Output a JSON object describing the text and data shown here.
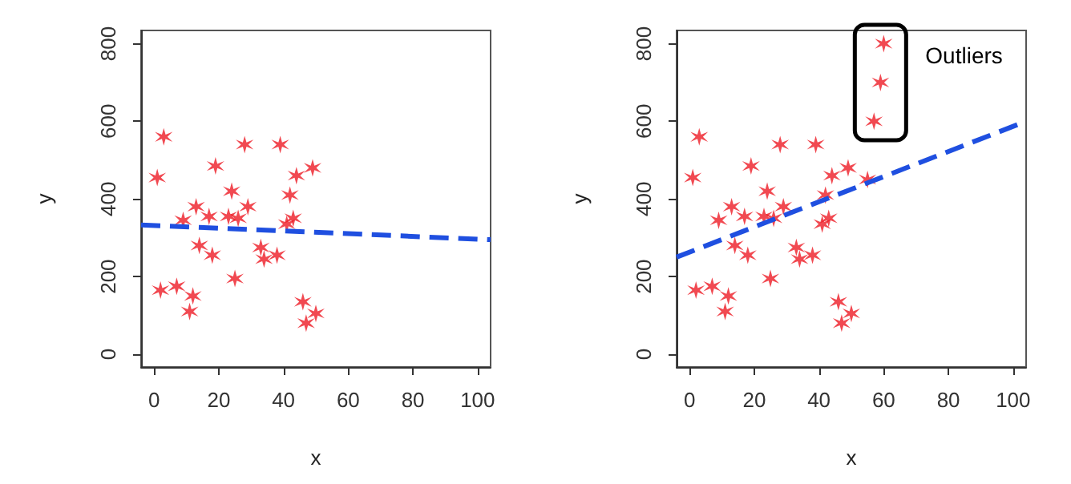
{
  "chart_data": [
    {
      "type": "scatter",
      "xlabel": "x",
      "ylabel": "y",
      "xlim": [
        -4,
        104
      ],
      "ylim": [
        -33,
        834
      ],
      "xticks": [
        0,
        20,
        40,
        60,
        80,
        100
      ],
      "yticks": [
        0,
        200,
        400,
        600,
        800
      ],
      "series": [
        {
          "color": "#ee1c25",
          "marker": "cross",
          "x": [
            1,
            3,
            2,
            7,
            9,
            11,
            12,
            13,
            14,
            17,
            18,
            19,
            23,
            24,
            25,
            26,
            28,
            29,
            33,
            34,
            38,
            39,
            41,
            42,
            43,
            44,
            46,
            47,
            49,
            50
          ],
          "values": [
            455,
            560,
            165,
            175,
            345,
            110,
            150,
            380,
            280,
            355,
            255,
            485,
            355,
            420,
            195,
            350,
            540,
            380,
            275,
            245,
            255,
            540,
            335,
            410,
            350,
            460,
            135,
            80,
            480,
            105
          ]
        },
        {
          "type": "line",
          "color": "#1f4fe0",
          "line_style": "dashed",
          "x": [
            -4,
            104
          ],
          "values": [
            333,
            295
          ]
        }
      ]
    },
    {
      "type": "scatter",
      "xlabel": "x",
      "ylabel": "y",
      "xlim": [
        -4,
        104
      ],
      "ylim": [
        -33,
        834
      ],
      "xticks": [
        0,
        20,
        40,
        60,
        80,
        100
      ],
      "yticks": [
        0,
        200,
        400,
        600,
        800
      ],
      "annotations": [
        {
          "text": "Outliers",
          "x": 59,
          "y": 700
        }
      ],
      "series": [
        {
          "color": "#ee1c25",
          "marker": "cross",
          "x": [
            1,
            3,
            2,
            7,
            9,
            11,
            12,
            13,
            14,
            17,
            18,
            19,
            23,
            24,
            25,
            26,
            28,
            29,
            33,
            34,
            38,
            39,
            41,
            42,
            43,
            44,
            46,
            47,
            49,
            50,
            55,
            57,
            59,
            60
          ],
          "values": [
            455,
            560,
            165,
            175,
            345,
            110,
            150,
            380,
            280,
            355,
            255,
            485,
            355,
            420,
            195,
            350,
            540,
            380,
            275,
            245,
            255,
            540,
            335,
            410,
            350,
            460,
            135,
            80,
            480,
            105,
            450,
            600,
            700,
            800
          ]
        },
        {
          "type": "line",
          "color": "#1f4fe0",
          "line_style": "dashed",
          "x": [
            -4,
            104
          ],
          "values": [
            250,
            600
          ]
        }
      ]
    }
  ]
}
